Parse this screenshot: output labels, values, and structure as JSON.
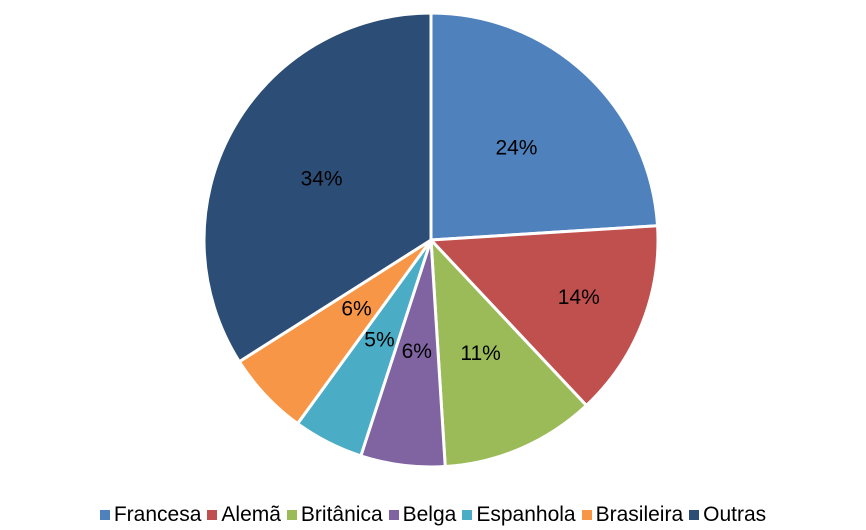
{
  "chart_data": {
    "type": "pie",
    "title": "",
    "categories": [
      "Francesa",
      "Alemã",
      "Britânica",
      "Belga",
      "Espanhola",
      "Brasileira",
      "Outras"
    ],
    "values": [
      24,
      14,
      11,
      6,
      5,
      6,
      34
    ],
    "data_labels": [
      "24%",
      "14%",
      "11%",
      "6%",
      "5%",
      "6%",
      "34%"
    ],
    "colors": [
      "#4F81BD",
      "#C0504D",
      "#9BBB59",
      "#8064A2",
      "#4BACC6",
      "#F79646",
      "#2C4D75"
    ],
    "start_angle_deg": 0,
    "direction": "clockwise",
    "legend_position": "bottom"
  }
}
